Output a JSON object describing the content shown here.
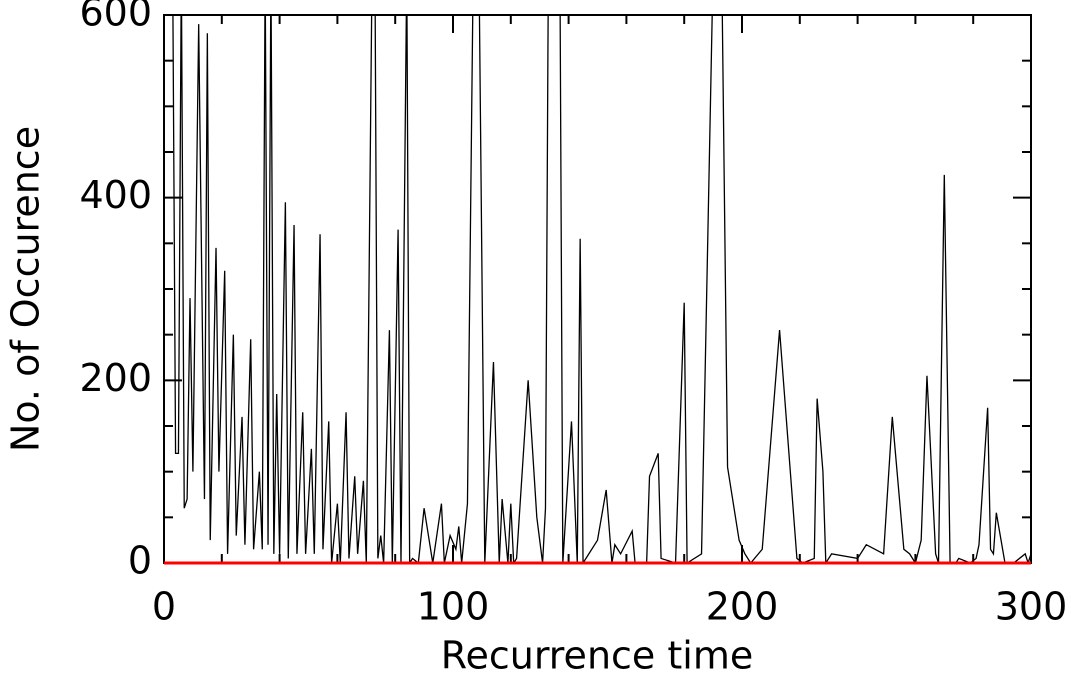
{
  "chart_data": {
    "type": "line",
    "x_label": "Recurrence time",
    "y_label": "No. of Occurence",
    "x": [
      3,
      4,
      5,
      6,
      7,
      8,
      9,
      10,
      12,
      14,
      15,
      16,
      18,
      19,
      21,
      22,
      24,
      25,
      27,
      28,
      30,
      31,
      33,
      34,
      35,
      36,
      37,
      38,
      39,
      40,
      42,
      43,
      45,
      46,
      48,
      49,
      51,
      52,
      54,
      55,
      57,
      58,
      60,
      61,
      63,
      64,
      66,
      67,
      69,
      70,
      72,
      73,
      74,
      75,
      76,
      78,
      79,
      81,
      82,
      84,
      85,
      86,
      88,
      90,
      93,
      96,
      97,
      99,
      101,
      102,
      103,
      105,
      107,
      109,
      111,
      114,
      116,
      117,
      119,
      120,
      121,
      122,
      126,
      129,
      131,
      132,
      133,
      137,
      138,
      141,
      143,
      144,
      145,
      147,
      150,
      153,
      155,
      156,
      158,
      162,
      163,
      167,
      168,
      171,
      172,
      177,
      180,
      181,
      186,
      190,
      193,
      195,
      199,
      201,
      203,
      207,
      213,
      219,
      221,
      225,
      226,
      228,
      229,
      230,
      231,
      240,
      243,
      249,
      252,
      256,
      258,
      260,
      262,
      264,
      267,
      268,
      270,
      272,
      274,
      275,
      279,
      281,
      282,
      285,
      286,
      287,
      288,
      291,
      294,
      296,
      298,
      299,
      300
    ],
    "values": [
      650,
      120,
      120,
      650,
      60,
      70,
      290,
      100,
      590,
      70,
      580,
      25,
      345,
      100,
      320,
      10,
      250,
      30,
      160,
      20,
      245,
      15,
      100,
      15,
      650,
      20,
      650,
      10,
      185,
      10,
      395,
      5,
      370,
      10,
      165,
      10,
      125,
      10,
      360,
      15,
      155,
      0,
      65,
      0,
      165,
      5,
      95,
      10,
      90,
      0,
      650,
      650,
      5,
      30,
      0,
      255,
      0,
      365,
      0,
      650,
      0,
      5,
      0,
      60,
      0,
      65,
      0,
      30,
      15,
      40,
      0,
      65,
      650,
      650,
      0,
      220,
      0,
      70,
      0,
      65,
      0,
      5,
      200,
      50,
      0,
      60,
      650,
      650,
      0,
      155,
      0,
      355,
      0,
      10,
      25,
      80,
      0,
      20,
      10,
      35,
      0,
      0,
      95,
      120,
      5,
      0,
      285,
      0,
      10,
      650,
      650,
      105,
      25,
      10,
      0,
      15,
      255,
      5,
      0,
      5,
      180,
      100,
      0,
      5,
      10,
      5,
      20,
      10,
      160,
      15,
      10,
      0,
      25,
      205,
      10,
      0,
      425,
      0,
      0,
      5,
      0,
      5,
      20,
      170,
      15,
      10,
      55,
      0,
      0,
      5,
      10,
      0,
      10
    ],
    "color": "#000000",
    "reference_line": {
      "value": 0,
      "color": "#ff0000"
    },
    "xlim": [
      0,
      300
    ],
    "ylim": [
      0,
      600
    ],
    "xticks": [
      0,
      100,
      200,
      300
    ],
    "yticks": [
      0,
      200,
      400,
      600
    ],
    "xminorticks": [
      20,
      40,
      60,
      80,
      120,
      140,
      160,
      180,
      220,
      240,
      260,
      280
    ],
    "yminorticks": [
      50,
      100,
      150,
      250,
      300,
      350,
      450,
      500,
      550
    ]
  }
}
